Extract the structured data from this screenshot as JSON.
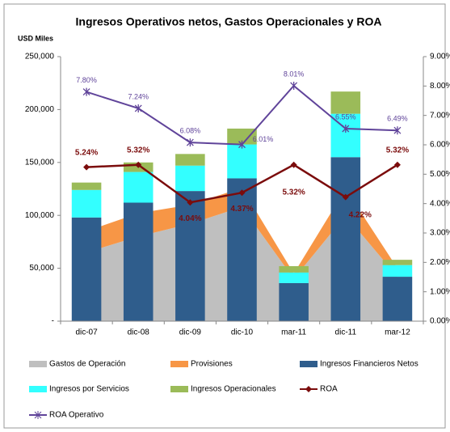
{
  "chart_data": {
    "type": "combo",
    "title": "Ingresos Operativos netos, Gastos  Operacionales y ROA",
    "y_label": "USD Miles",
    "categories": [
      "dic-07",
      "dic-08",
      "dic-09",
      "dic-10",
      "mar-11",
      "dic-11",
      "mar-12"
    ],
    "ylim": [
      0,
      250000
    ],
    "yticks": [
      {
        "value": 0,
        "label": "-"
      },
      {
        "value": 50000,
        "label": "50,000"
      },
      {
        "value": 100000,
        "label": "100,000"
      },
      {
        "value": 150000,
        "label": "150,000"
      },
      {
        "value": 200000,
        "label": "200,000"
      },
      {
        "value": 250000,
        "label": "250,000"
      }
    ],
    "y2lim": [
      0,
      9
    ],
    "y2ticks": [
      {
        "value": 0,
        "label": "0.00%"
      },
      {
        "value": 1,
        "label": "1.00%"
      },
      {
        "value": 2,
        "label": "2.00%"
      },
      {
        "value": 3,
        "label": "3.00%"
      },
      {
        "value": 4,
        "label": "4.00%"
      },
      {
        "value": 5,
        "label": "5.00%"
      },
      {
        "value": 6,
        "label": "6.00%"
      },
      {
        "value": 7,
        "label": "7.00%"
      },
      {
        "value": 8,
        "label": "8.00%"
      },
      {
        "value": 9,
        "label": "9.00%"
      }
    ],
    "series": [
      {
        "name": "Gastos de Operación",
        "type": "area",
        "color": "#bfbfbf",
        "values": [
          65000,
          80000,
          92000,
          108000,
          40000,
          100000,
          42000
        ]
      },
      {
        "name": "Provisiones",
        "type": "area",
        "color": "#f79646",
        "values": [
          20000,
          22000,
          18000,
          18000,
          5000,
          25000,
          8000
        ]
      },
      {
        "name": "Ingresos Financieros Netos",
        "type": "bar",
        "color": "#2f5d8c",
        "values": [
          98000,
          112000,
          123000,
          135000,
          36000,
          155000,
          42000
        ]
      },
      {
        "name": "Ingresos por Servicios",
        "type": "bar",
        "color": "#33ffff",
        "values": [
          26000,
          29000,
          24000,
          32000,
          10000,
          41000,
          11000
        ]
      },
      {
        "name": "Ingresos Operacionales",
        "type": "bar",
        "color": "#9bbb59",
        "values": [
          7000,
          9000,
          11000,
          15000,
          6000,
          21000,
          5000
        ]
      },
      {
        "name": "ROA",
        "type": "line",
        "axis": "y2",
        "marker": "diamond",
        "color": "#7b0c0c",
        "values": [
          5.24,
          5.32,
          4.04,
          4.37,
          5.32,
          4.22,
          5.32
        ],
        "value_labels": [
          "5.24%",
          "5.32%",
          "4.04%",
          "4.37%",
          "5.32%",
          "4.22%",
          "5.32%"
        ]
      },
      {
        "name": "ROA Operativo",
        "type": "line",
        "axis": "y2",
        "marker": "x",
        "color": "#60449a",
        "values": [
          7.8,
          7.24,
          6.08,
          6.01,
          8.01,
          6.55,
          6.49
        ],
        "value_labels": [
          "7.80%",
          "7.24%",
          "6.08%",
          "6.01%",
          "8.01%",
          "6.55%",
          "6.49%"
        ]
      }
    ]
  }
}
